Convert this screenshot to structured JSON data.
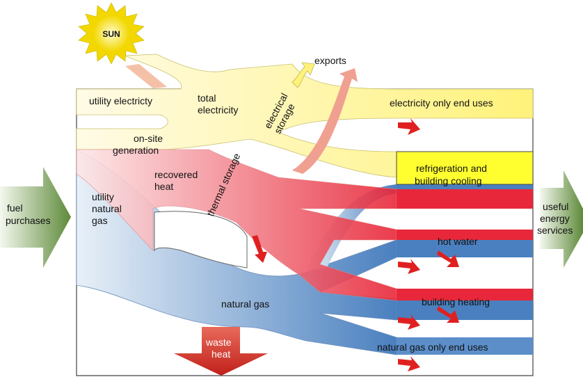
{
  "sun": "SUN",
  "exports": "exports",
  "utility_electricity": "utility electricty",
  "total_electricity": [
    "total",
    "electricity"
  ],
  "electrical_storage": [
    "electrical",
    "storage"
  ],
  "electricity_only_end_uses": "electricity only end uses",
  "on_site_generation": [
    "on-site",
    "generation"
  ],
  "recovered_heat": [
    "recovered",
    "heat"
  ],
  "thermal_storage": "thermal storage",
  "refrigeration": [
    "refrigeration and",
    "building cooling"
  ],
  "utility_natural_gas": [
    "utility",
    "natural",
    "gas"
  ],
  "fuel_purchases": [
    "fuel",
    "purchases"
  ],
  "useful_energy_services": [
    "useful",
    "energy",
    "services"
  ],
  "hot_water": "hot water",
  "natural_gas": "natural gas",
  "building_heating": "building heating",
  "waste_heat": [
    "waste",
    "heat"
  ],
  "natural_gas_only_end_uses": "natural gas only end uses"
}
